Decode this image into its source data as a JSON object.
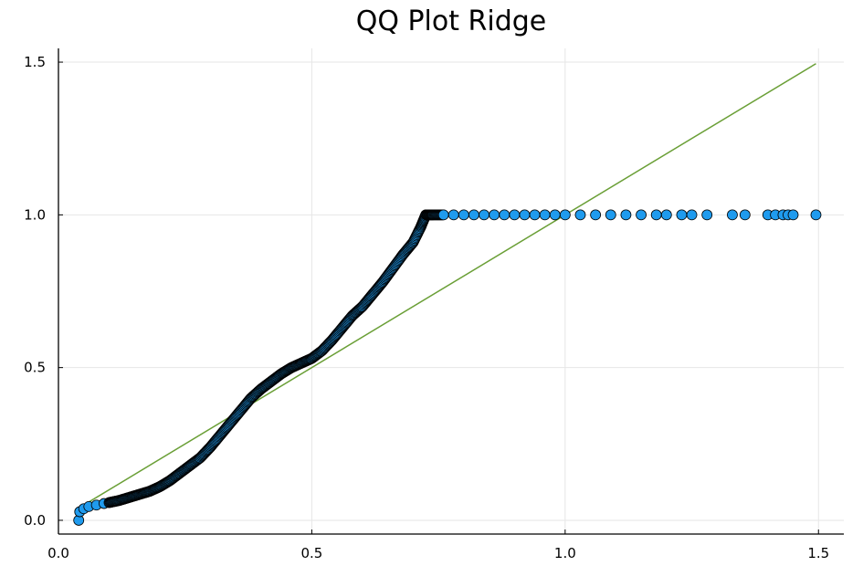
{
  "chart_data": {
    "type": "scatter",
    "title": "QQ Plot Ridge",
    "xlabel": "",
    "ylabel": "",
    "xlim": [
      0.0,
      1.55
    ],
    "ylim": [
      -0.045,
      1.545
    ],
    "x_ticks": [
      "0.0",
      "0.5",
      "1.0",
      "1.5"
    ],
    "y_ticks": [
      "0.0",
      "0.5",
      "1.0",
      "1.5"
    ],
    "grid": true,
    "legend": "none",
    "colors": {
      "points_fill": "#1f9bee",
      "points_outline": "#000000",
      "reference_line": "#6a9f36",
      "grid": "#e6e6e6",
      "axis": "#000000"
    },
    "series": [
      {
        "type": "scatter",
        "points": [
          [
            0.04,
            0.0
          ],
          [
            0.042,
            0.028
          ],
          [
            0.05,
            0.038
          ],
          [
            0.06,
            0.045
          ],
          [
            0.075,
            0.05
          ],
          [
            0.09,
            0.055
          ],
          [
            0.1,
            0.058
          ],
          [
            0.12,
            0.065
          ],
          [
            0.14,
            0.075
          ],
          [
            0.16,
            0.085
          ],
          [
            0.18,
            0.095
          ],
          [
            0.2,
            0.11
          ],
          [
            0.22,
            0.13
          ],
          [
            0.24,
            0.155
          ],
          [
            0.26,
            0.18
          ],
          [
            0.28,
            0.205
          ],
          [
            0.3,
            0.24
          ],
          [
            0.32,
            0.28
          ],
          [
            0.34,
            0.32
          ],
          [
            0.36,
            0.36
          ],
          [
            0.38,
            0.4
          ],
          [
            0.4,
            0.43
          ],
          [
            0.42,
            0.455
          ],
          [
            0.44,
            0.48
          ],
          [
            0.46,
            0.5
          ],
          [
            0.48,
            0.515
          ],
          [
            0.5,
            0.53
          ],
          [
            0.52,
            0.555
          ],
          [
            0.54,
            0.59
          ],
          [
            0.56,
            0.63
          ],
          [
            0.58,
            0.67
          ],
          [
            0.6,
            0.7
          ],
          [
            0.62,
            0.74
          ],
          [
            0.64,
            0.78
          ],
          [
            0.66,
            0.825
          ],
          [
            0.68,
            0.87
          ],
          [
            0.7,
            0.91
          ],
          [
            0.715,
            0.96
          ],
          [
            0.725,
            1.0
          ],
          [
            0.74,
            1.0
          ],
          [
            0.76,
            1.0
          ],
          [
            0.78,
            1.0
          ],
          [
            0.8,
            1.0
          ],
          [
            0.82,
            1.0
          ],
          [
            0.84,
            1.0
          ],
          [
            0.86,
            1.0
          ],
          [
            0.88,
            1.0
          ],
          [
            0.9,
            1.0
          ],
          [
            0.92,
            1.0
          ],
          [
            0.94,
            1.0
          ],
          [
            0.96,
            1.0
          ],
          [
            0.98,
            1.0
          ],
          [
            1.0,
            1.0
          ],
          [
            1.03,
            1.0
          ],
          [
            1.06,
            1.0
          ],
          [
            1.09,
            1.0
          ],
          [
            1.12,
            1.0
          ],
          [
            1.15,
            1.0
          ],
          [
            1.18,
            1.0
          ],
          [
            1.2,
            1.0
          ],
          [
            1.23,
            1.0
          ],
          [
            1.25,
            1.0
          ],
          [
            1.28,
            1.0
          ],
          [
            1.33,
            1.0
          ],
          [
            1.355,
            1.0
          ],
          [
            1.4,
            1.0
          ],
          [
            1.415,
            1.0
          ],
          [
            1.43,
            1.0
          ],
          [
            1.44,
            1.0
          ],
          [
            1.45,
            1.0
          ],
          [
            1.495,
            1.0
          ]
        ]
      },
      {
        "type": "line",
        "points": [
          [
            0.04,
            0.04
          ],
          [
            1.495,
            1.495
          ]
        ]
      }
    ]
  }
}
